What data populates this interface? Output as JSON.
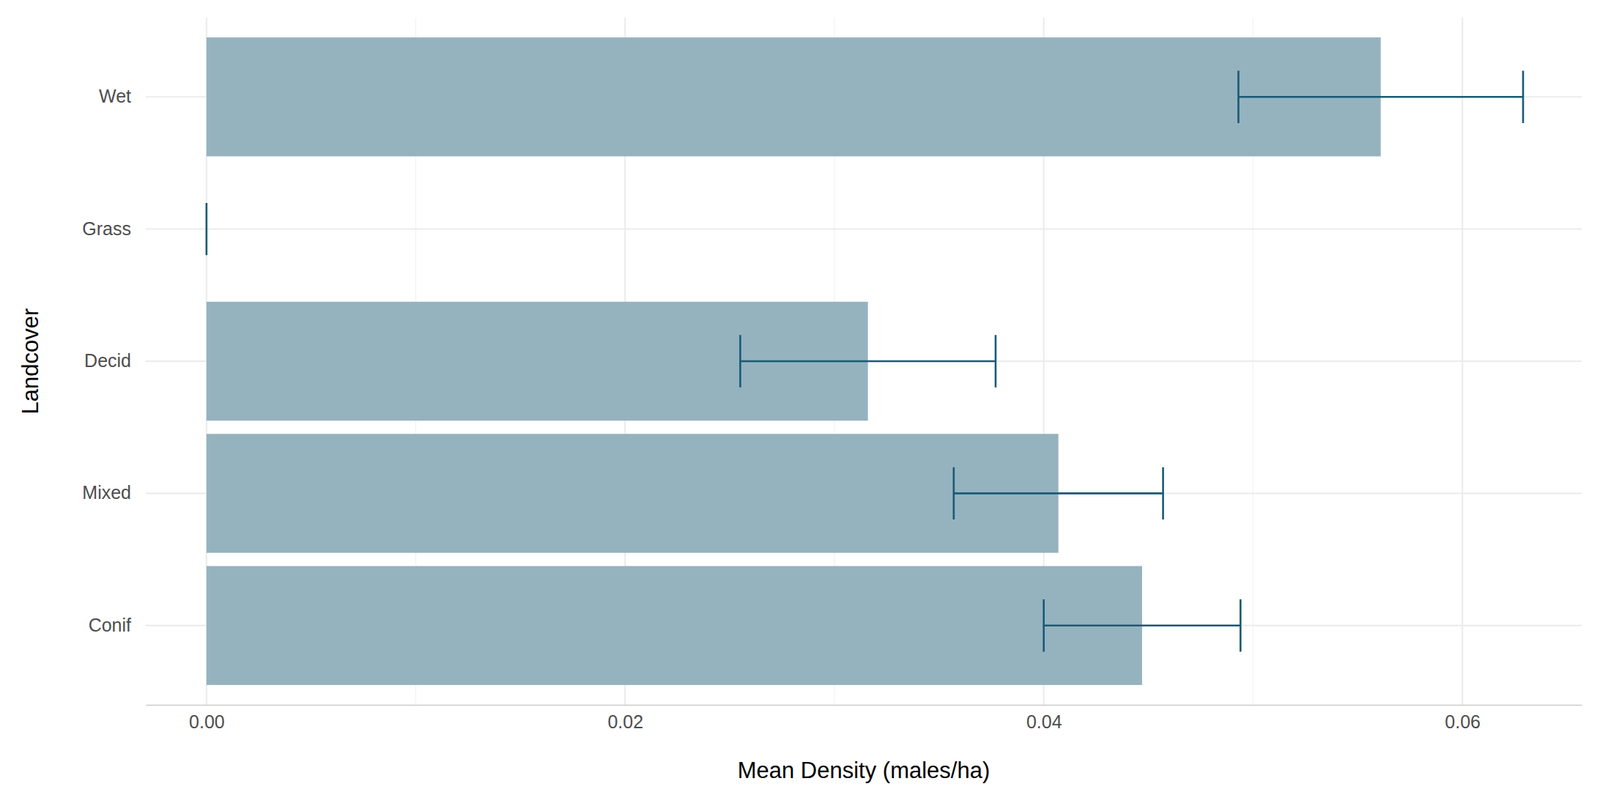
{
  "chart_data": {
    "type": "bar",
    "orientation": "horizontal",
    "x_label": "Mean Density (males/ha)",
    "y_label": "Landcover",
    "categories": [
      "Conif",
      "Mixed",
      "Decid",
      "Grass",
      "Wet"
    ],
    "values": [
      0.0447,
      0.0407,
      0.0316,
      0,
      0.0561
    ],
    "errors": [
      0.0047,
      0.005,
      0.0061,
      0,
      0.0068
    ],
    "color": "#95b3bf",
    "error_color": "#1a5a73",
    "xlim": [
      -0.0029,
      0.0657
    ],
    "xticks": [
      {
        "value": 0,
        "label": "0.00"
      },
      {
        "value": 0.02,
        "label": "0.02"
      },
      {
        "value": 0.04,
        "label": "0.04"
      },
      {
        "value": 0.06,
        "label": "0.06"
      }
    ],
    "grid": true
  }
}
